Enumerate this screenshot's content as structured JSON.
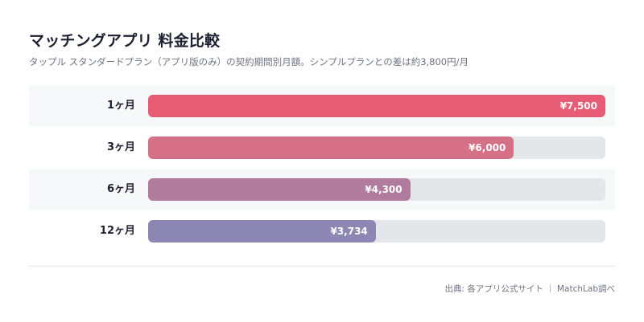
{
  "title": "マッチングアプリ 料金比較",
  "subtitle": "タップル スタンダードプラン（アプリ版のみ）の契約期間別月額。シンプルプランとの差は約3,800円/月",
  "source": "出典: 各アプリ公式サイト ｜ MatchLab調べ",
  "colors": {
    "row_shade": "#f7f8fa",
    "track": "#e5e6ea"
  },
  "chart_data": {
    "type": "bar",
    "orientation": "horizontal",
    "categories": [
      "1ヶ月",
      "3ヶ月",
      "6ヶ月",
      "12ヶ月"
    ],
    "values": [
      7500,
      6000,
      4300,
      3734
    ],
    "value_labels": [
      "¥7,500",
      "¥6,000",
      "¥4,300",
      "¥3,734"
    ],
    "bar_colors": [
      "#e85c76",
      "#d67086",
      "#b07b9c",
      "#8c87b3"
    ],
    "xlim": [
      0,
      7500
    ],
    "grid": false
  }
}
